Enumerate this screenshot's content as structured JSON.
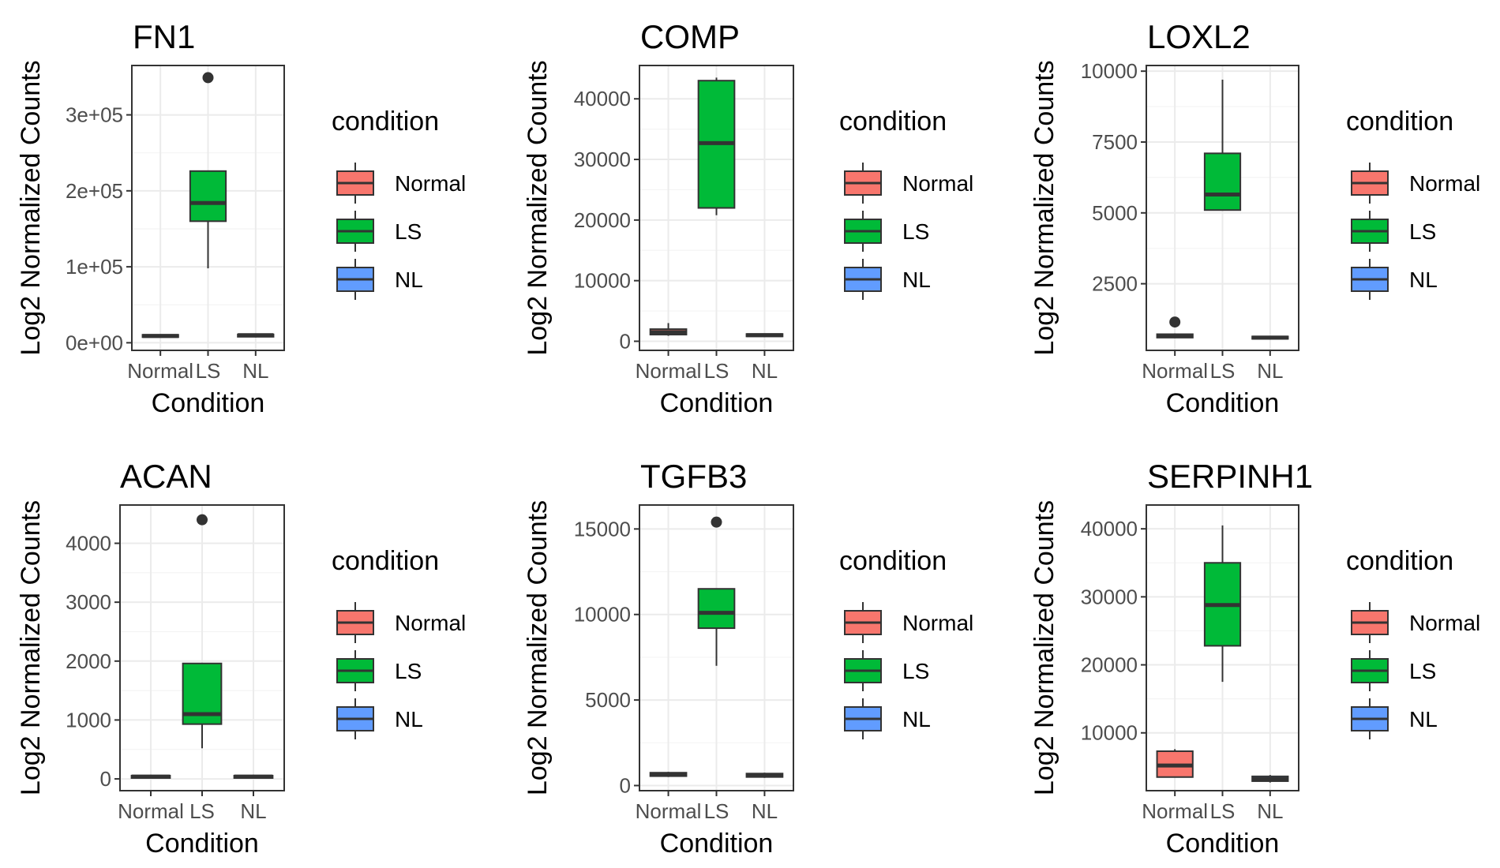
{
  "chart_data": [
    {
      "type": "box",
      "title": "FN1",
      "xlabel": "Condition",
      "ylabel": "Log2 Normalized Counts",
      "categories": [
        "Normal",
        "LS",
        "NL"
      ],
      "ylim": [
        -10000,
        365000
      ],
      "yticks": [
        0,
        100000,
        200000,
        300000
      ],
      "ytick_labels": [
        "0e+00",
        "1e+05",
        "2e+05",
        "3e+05"
      ],
      "boxes": [
        {
          "category": "Normal",
          "min": 7000,
          "q1": 7500,
          "median": 9000,
          "q3": 10500,
          "max": 11000,
          "outliers": []
        },
        {
          "category": "LS",
          "min": 98000,
          "q1": 160000,
          "median": 184000,
          "q3": 226000,
          "max": 226000,
          "outliers": [
            349000
          ]
        },
        {
          "category": "NL",
          "min": 7000,
          "q1": 8500,
          "median": 10000,
          "q3": 11000,
          "max": 12000,
          "outliers": []
        }
      ],
      "legend": {
        "title": "condition",
        "position": "right",
        "entries": [
          "Normal",
          "LS",
          "NL"
        ]
      }
    },
    {
      "type": "box",
      "title": "COMP",
      "xlabel": "Condition",
      "ylabel": "Log2 Normalized Counts",
      "categories": [
        "Normal",
        "LS",
        "NL"
      ],
      "ylim": [
        -1500,
        45500
      ],
      "yticks": [
        0,
        10000,
        20000,
        30000,
        40000
      ],
      "ytick_labels": [
        "0",
        "10000",
        "20000",
        "30000",
        "40000"
      ],
      "boxes": [
        {
          "category": "Normal",
          "min": 900,
          "q1": 1100,
          "median": 1500,
          "q3": 2000,
          "max": 3000,
          "outliers": []
        },
        {
          "category": "LS",
          "min": 20800,
          "q1": 22000,
          "median": 32700,
          "q3": 43000,
          "max": 43500,
          "outliers": []
        },
        {
          "category": "NL",
          "min": 700,
          "q1": 800,
          "median": 1000,
          "q3": 1200,
          "max": 1300,
          "outliers": []
        }
      ],
      "legend": {
        "title": "condition",
        "position": "right",
        "entries": [
          "Normal",
          "LS",
          "NL"
        ]
      }
    },
    {
      "type": "box",
      "title": "LOXL2",
      "xlabel": "Condition",
      "ylabel": "Log2 Normalized Counts",
      "categories": [
        "Normal",
        "LS",
        "NL"
      ],
      "ylim": [
        150,
        10200
      ],
      "yticks": [
        2500,
        5000,
        7500,
        10000
      ],
      "ytick_labels": [
        "2500",
        "5000",
        "7500",
        "10000"
      ],
      "boxes": [
        {
          "category": "Normal",
          "min": 580,
          "q1": 600,
          "median": 650,
          "q3": 720,
          "max": 750,
          "outliers": [
            1150
          ]
        },
        {
          "category": "LS",
          "min": 5100,
          "q1": 5100,
          "median": 5650,
          "q3": 7100,
          "max": 9700,
          "outliers": []
        },
        {
          "category": "NL",
          "min": 530,
          "q1": 560,
          "median": 600,
          "q3": 640,
          "max": 660,
          "outliers": []
        }
      ],
      "legend": {
        "title": "condition",
        "position": "right",
        "entries": [
          "Normal",
          "LS",
          "NL"
        ]
      }
    },
    {
      "type": "box",
      "title": "ACAN",
      "xlabel": "Condition",
      "ylabel": "Log2 Normalized Counts",
      "categories": [
        "Normal",
        "LS",
        "NL"
      ],
      "ylim": [
        -200,
        4650
      ],
      "yticks": [
        0,
        1000,
        2000,
        3000,
        4000
      ],
      "ytick_labels": [
        "0",
        "1000",
        "2000",
        "3000",
        "4000"
      ],
      "boxes": [
        {
          "category": "Normal",
          "min": 20,
          "q1": 30,
          "median": 40,
          "q3": 55,
          "max": 70,
          "outliers": []
        },
        {
          "category": "LS",
          "min": 520,
          "q1": 930,
          "median": 1100,
          "q3": 1960,
          "max": 1960,
          "outliers": [
            4400
          ]
        },
        {
          "category": "NL",
          "min": 20,
          "q1": 30,
          "median": 40,
          "q3": 55,
          "max": 70,
          "outliers": []
        }
      ],
      "legend": {
        "title": "condition",
        "position": "right",
        "entries": [
          "Normal",
          "LS",
          "NL"
        ]
      }
    },
    {
      "type": "box",
      "title": "TGFB3",
      "xlabel": "Condition",
      "ylabel": "Log2 Normalized Counts",
      "categories": [
        "Normal",
        "LS",
        "NL"
      ],
      "ylim": [
        -300,
        16400
      ],
      "yticks": [
        0,
        5000,
        10000,
        15000
      ],
      "ytick_labels": [
        "0",
        "5000",
        "10000",
        "15000"
      ],
      "boxes": [
        {
          "category": "Normal",
          "min": 500,
          "q1": 550,
          "median": 650,
          "q3": 750,
          "max": 800,
          "outliers": []
        },
        {
          "category": "LS",
          "min": 7000,
          "q1": 9200,
          "median": 10100,
          "q3": 11500,
          "max": 11500,
          "outliers": [
            15400
          ]
        },
        {
          "category": "NL",
          "min": 450,
          "q1": 500,
          "median": 600,
          "q3": 700,
          "max": 750,
          "outliers": []
        }
      ],
      "legend": {
        "title": "condition",
        "position": "right",
        "entries": [
          "Normal",
          "LS",
          "NL"
        ]
      }
    },
    {
      "type": "box",
      "title": "SERPINH1",
      "xlabel": "Condition",
      "ylabel": "Log2 Normalized Counts",
      "categories": [
        "Normal",
        "LS",
        "NL"
      ],
      "ylim": [
        1500,
        43500
      ],
      "yticks": [
        10000,
        20000,
        30000,
        40000
      ],
      "ytick_labels": [
        "10000",
        "20000",
        "30000",
        "40000"
      ],
      "boxes": [
        {
          "category": "Normal",
          "min": 3500,
          "q1": 3500,
          "median": 5200,
          "q3": 7300,
          "max": 7600,
          "outliers": []
        },
        {
          "category": "LS",
          "min": 17500,
          "q1": 22800,
          "median": 28800,
          "q3": 35000,
          "max": 40500,
          "outliers": []
        },
        {
          "category": "NL",
          "min": 2700,
          "q1": 2900,
          "median": 3200,
          "q3": 3600,
          "max": 3800,
          "outliers": []
        }
      ],
      "legend": {
        "title": "condition",
        "position": "right",
        "entries": [
          "Normal",
          "LS",
          "NL"
        ]
      }
    }
  ],
  "colors": {
    "Normal": "#F8766D",
    "LS": "#00BA38",
    "NL": "#619CFF",
    "median_line": "#333333",
    "grid": "#ebebeb",
    "panel_border": "#333333",
    "tick_text": "#4d4d4d"
  }
}
